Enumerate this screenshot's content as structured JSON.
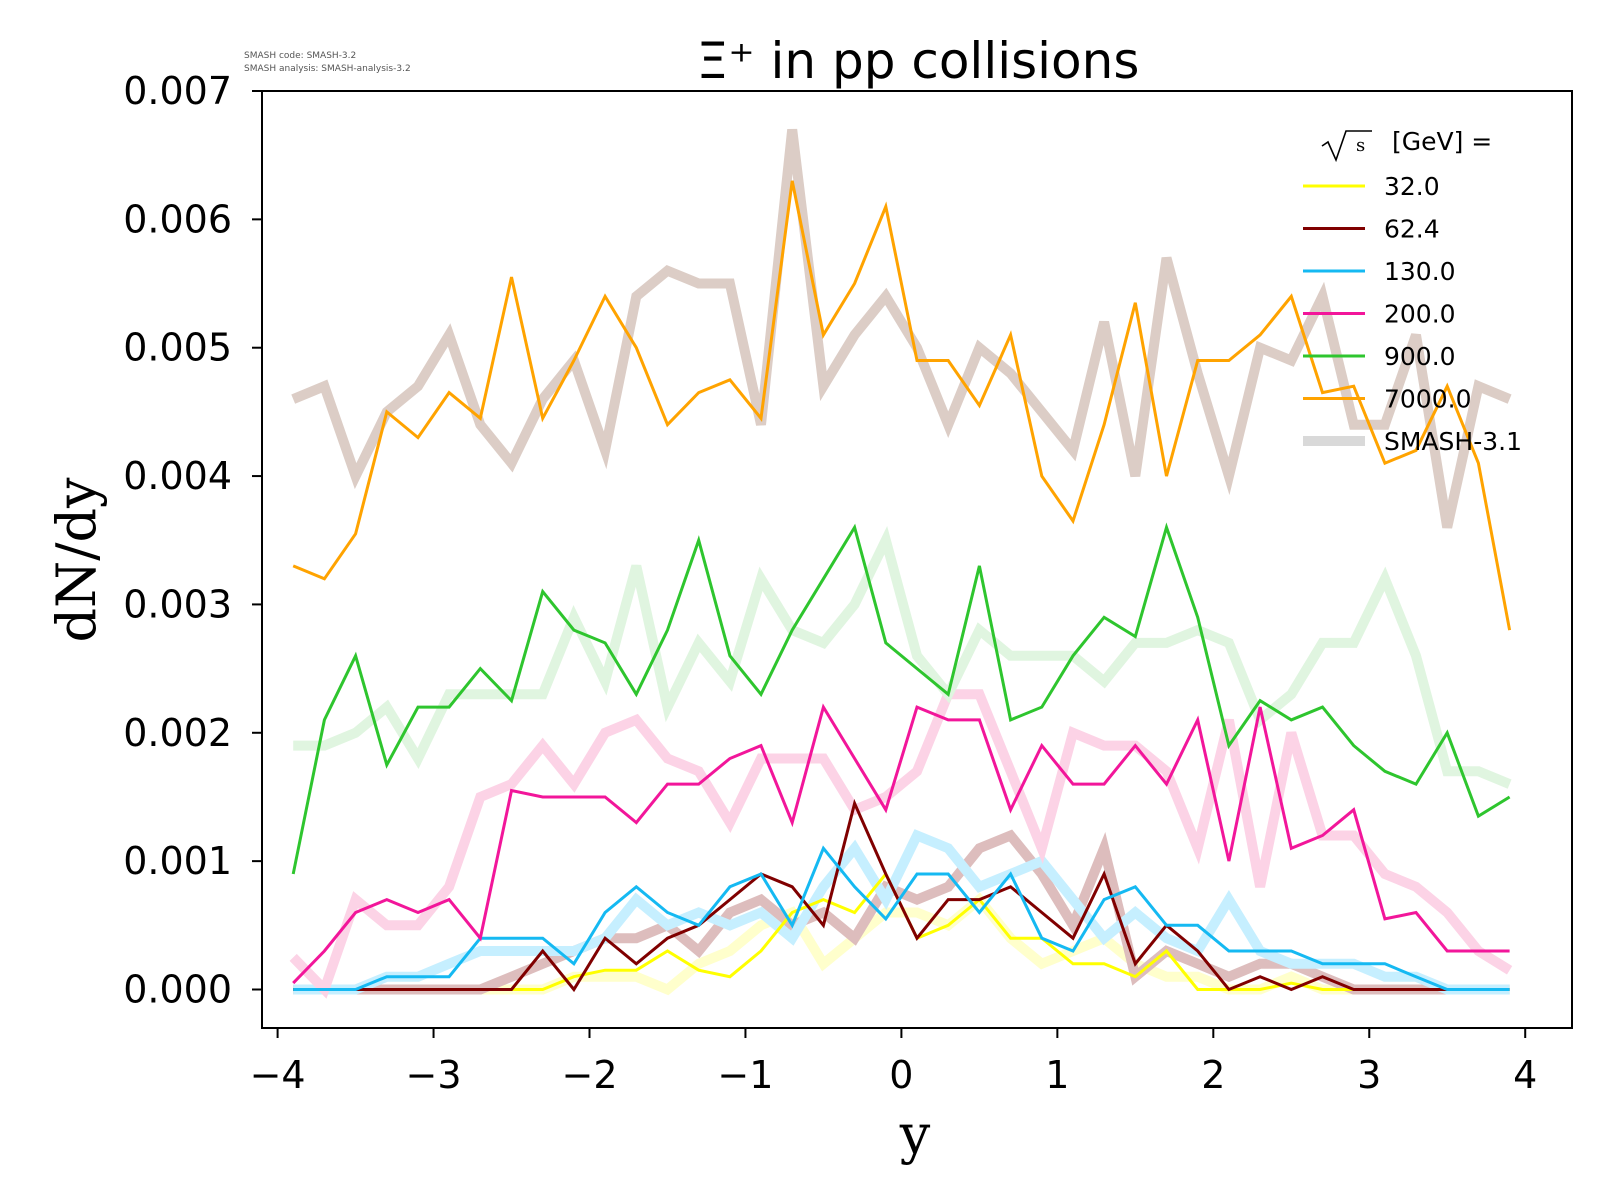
{
  "header": {
    "watermark_line1": "SMASH code:      SMASH-3.2",
    "watermark_line2": "SMASH analysis: SMASH-analysis-3.2"
  },
  "chart_data": {
    "type": "line",
    "title": "Ξ⁺ in pp collisions",
    "xlabel": "y",
    "ylabel": "dN/dy",
    "xlim": [
      -4.1,
      4.3
    ],
    "ylim": [
      -0.0003,
      0.007
    ],
    "xticks": [
      -4,
      -3,
      -2,
      -1,
      0,
      1,
      2,
      3,
      4
    ],
    "xtick_labels": [
      "−4",
      "−3",
      "−2",
      "−1",
      "0",
      "1",
      "2",
      "3",
      "4"
    ],
    "yticks": [
      0.0,
      0.001,
      0.002,
      0.003,
      0.004,
      0.005,
      0.006,
      0.007
    ],
    "ytick_labels": [
      "0.000",
      "0.001",
      "0.002",
      "0.003",
      "0.004",
      "0.005",
      "0.006",
      "0.007"
    ],
    "grid": false,
    "legend": {
      "position": "top-right",
      "title_prefix": "√s",
      "title_suffix": "[GeV] =",
      "entries": [
        "32.0",
        "62.4",
        "130.0",
        "200.0",
        "900.0",
        "7000.0",
        "SMASH-3.1"
      ]
    },
    "x": [
      -3.9,
      -3.7,
      -3.5,
      -3.3,
      -3.1,
      -2.9,
      -2.7,
      -2.5,
      -2.3,
      -2.1,
      -1.9,
      -1.7,
      -1.5,
      -1.3,
      -1.1,
      -0.9,
      -0.7,
      -0.5,
      -0.3,
      -0.1,
      0.1,
      0.3,
      0.5,
      0.7,
      0.9,
      1.1,
      1.3,
      1.5,
      1.7,
      1.9,
      2.1,
      2.3,
      2.5,
      2.7,
      2.9,
      3.1,
      3.3,
      3.5,
      3.7,
      3.9
    ],
    "reference_series": [
      {
        "color": "#ffffcc",
        "values": [
          0,
          0,
          0,
          0,
          0,
          0,
          0,
          0,
          0,
          0.0001,
          0.0001,
          0.0001,
          0.0,
          0.0002,
          0.0003,
          0.0005,
          0.0006,
          0.0002,
          0.0004,
          0.0006,
          0.0006,
          0.0005,
          0.0007,
          0.0004,
          0.0002,
          0.0003,
          0.0004,
          0.0002,
          0.0001,
          0.0001,
          0,
          0,
          0.0001,
          0,
          0,
          0,
          0,
          0,
          0,
          0
        ]
      },
      {
        "color": "#ddbdbd",
        "values": [
          0,
          0,
          0,
          0,
          0,
          0,
          0,
          0.0001,
          0.0002,
          0.0003,
          0.0004,
          0.0004,
          0.0005,
          0.0003,
          0.0006,
          0.0007,
          0.0005,
          0.0006,
          0.0004,
          0.0008,
          0.0007,
          0.0008,
          0.0011,
          0.0012,
          0.0009,
          0.0005,
          0.0011,
          0.0001,
          0.0003,
          0.0002,
          0.0001,
          0.0002,
          0.0002,
          0.0001,
          0,
          0,
          0,
          0,
          0,
          0
        ]
      },
      {
        "color": "#c6efff",
        "values": [
          0,
          0,
          0,
          0.0001,
          0.0001,
          0.0002,
          0.0003,
          0.0003,
          0.0003,
          0.0003,
          0.0004,
          0.0007,
          0.0005,
          0.0006,
          0.0005,
          0.0006,
          0.0004,
          0.0008,
          0.0011,
          0.0007,
          0.0012,
          0.0011,
          0.0008,
          0.0009,
          0.001,
          0.0007,
          0.0004,
          0.0006,
          0.0004,
          0.0003,
          0.0007,
          0.0003,
          0.0002,
          0.0002,
          0.0002,
          0.0001,
          0.0001,
          0,
          0,
          0
        ]
      },
      {
        "color": "#fcd3e6",
        "values": [
          0.00025,
          0,
          0.0007,
          0.0005,
          0.0005,
          0.0008,
          0.0015,
          0.0016,
          0.0019,
          0.0016,
          0.002,
          0.0021,
          0.0018,
          0.0017,
          0.0013,
          0.0018,
          0.0018,
          0.0018,
          0.0014,
          0.0015,
          0.0017,
          0.0023,
          0.0023,
          0.0017,
          0.0011,
          0.002,
          0.0019,
          0.0019,
          0.0017,
          0.0011,
          0.0021,
          0.0008,
          0.002,
          0.0012,
          0.0012,
          0.0009,
          0.0008,
          0.0006,
          0.0003,
          0.00015
        ]
      },
      {
        "color": "#e0f5e0",
        "values": [
          0.0019,
          0.0019,
          0.002,
          0.0022,
          0.0018,
          0.0023,
          0.0023,
          0.0023,
          0.0023,
          0.0029,
          0.0024,
          0.0033,
          0.0022,
          0.0027,
          0.0024,
          0.0032,
          0.0028,
          0.0027,
          0.003,
          0.0035,
          0.0026,
          0.0023,
          0.0028,
          0.0026,
          0.0026,
          0.0026,
          0.0024,
          0.0027,
          0.0027,
          0.0028,
          0.0027,
          0.0021,
          0.0023,
          0.0027,
          0.0027,
          0.0032,
          0.0026,
          0.0017,
          0.0017,
          0.0016
        ]
      },
      {
        "color": "#dccdc6",
        "values": [
          0.0046,
          0.0047,
          0.004,
          0.0045,
          0.0047,
          0.0051,
          0.0044,
          0.0041,
          0.0046,
          0.0049,
          0.0042,
          0.0054,
          0.0056,
          0.0055,
          0.0055,
          0.0044,
          0.0067,
          0.0047,
          0.0051,
          0.0054,
          0.005,
          0.0044,
          0.005,
          0.0048,
          0.0045,
          0.0042,
          0.0052,
          0.004,
          0.0057,
          0.0048,
          0.004,
          0.005,
          0.0049,
          0.0054,
          0.0044,
          0.0044,
          0.0051,
          0.0036,
          0.0047,
          0.0046
        ]
      }
    ],
    "series": [
      {
        "name": "32.0",
        "color": "#ffff00",
        "values": [
          0,
          0,
          0,
          0,
          0,
          0,
          0,
          0,
          0,
          0.0001,
          0.00015,
          0.00015,
          0.0003,
          0.00015,
          0.0001,
          0.0003,
          0.0006,
          0.0007,
          0.0006,
          0.0009,
          0.0004,
          0.0005,
          0.0007,
          0.0004,
          0.0004,
          0.0002,
          0.0002,
          0.0001,
          0.0003,
          0,
          0,
          0,
          5e-05,
          0,
          0,
          0,
          0,
          0,
          0,
          0
        ]
      },
      {
        "name": "62.4",
        "color": "#800000",
        "values": [
          0,
          0,
          0,
          0,
          0,
          0,
          0,
          0,
          0.0003,
          0,
          0.0004,
          0.0002,
          0.0004,
          0.0005,
          0.0007,
          0.0009,
          0.0008,
          0.0005,
          0.00145,
          0.0009,
          0.0004,
          0.0007,
          0.0007,
          0.0008,
          0.0006,
          0.0004,
          0.0009,
          0.0002,
          0.0005,
          0.0003,
          0,
          0.0001,
          0,
          0.0001,
          0,
          0,
          0,
          0,
          0,
          0
        ]
      },
      {
        "name": "130.0",
        "color": "#15b9f2",
        "values": [
          0,
          0,
          0,
          0.0001,
          0.0001,
          0.0001,
          0.0004,
          0.0004,
          0.0004,
          0.0002,
          0.0006,
          0.0008,
          0.0006,
          0.0005,
          0.0008,
          0.0009,
          0.0005,
          0.0011,
          0.0008,
          0.00055,
          0.0009,
          0.0009,
          0.0006,
          0.0009,
          0.0004,
          0.0003,
          0.0007,
          0.0008,
          0.0005,
          0.0005,
          0.0003,
          0.0003,
          0.0003,
          0.0002,
          0.0002,
          0.0002,
          0.0001,
          0,
          0,
          0
        ]
      },
      {
        "name": "200.0",
        "color": "#f2169a",
        "values": [
          5e-05,
          0.0003,
          0.0006,
          0.0007,
          0.0006,
          0.0007,
          0.0004,
          0.00155,
          0.0015,
          0.0015,
          0.0015,
          0.0013,
          0.0016,
          0.0016,
          0.0018,
          0.0019,
          0.0013,
          0.0022,
          0.0018,
          0.0014,
          0.0022,
          0.0021,
          0.0021,
          0.0014,
          0.0019,
          0.0016,
          0.0016,
          0.0019,
          0.0016,
          0.0021,
          0.001,
          0.0022,
          0.0011,
          0.0012,
          0.0014,
          0.00055,
          0.0006,
          0.0003,
          0.0003,
          0.0003
        ]
      },
      {
        "name": "900.0",
        "color": "#2ec52e",
        "values": [
          0.0009,
          0.0021,
          0.0026,
          0.00175,
          0.0022,
          0.0022,
          0.0025,
          0.00225,
          0.0031,
          0.0028,
          0.0027,
          0.0023,
          0.0028,
          0.0035,
          0.0026,
          0.0023,
          0.0028,
          0.0032,
          0.0036,
          0.0027,
          0.0025,
          0.0023,
          0.0033,
          0.0021,
          0.0022,
          0.0026,
          0.0029,
          0.00275,
          0.0036,
          0.0029,
          0.0019,
          0.00225,
          0.0021,
          0.0022,
          0.0019,
          0.0017,
          0.0016,
          0.002,
          0.00135,
          0.0015
        ]
      },
      {
        "name": "7000.0",
        "color": "#ffa300",
        "values": [
          0.0033,
          0.0032,
          0.00355,
          0.0045,
          0.0043,
          0.00465,
          0.00445,
          0.00555,
          0.00445,
          0.0049,
          0.0054,
          0.005,
          0.0044,
          0.00465,
          0.00475,
          0.00445,
          0.0063,
          0.0051,
          0.0055,
          0.0061,
          0.0049,
          0.0049,
          0.00455,
          0.0051,
          0.004,
          0.00365,
          0.0044,
          0.00535,
          0.004,
          0.0049,
          0.0049,
          0.0051,
          0.0054,
          0.00465,
          0.0047,
          0.0041,
          0.0042,
          0.0047,
          0.0041,
          0.0028
        ]
      }
    ],
    "reference_label": "SMASH-3.1",
    "reference_legend_color": "#d9d9d9"
  }
}
